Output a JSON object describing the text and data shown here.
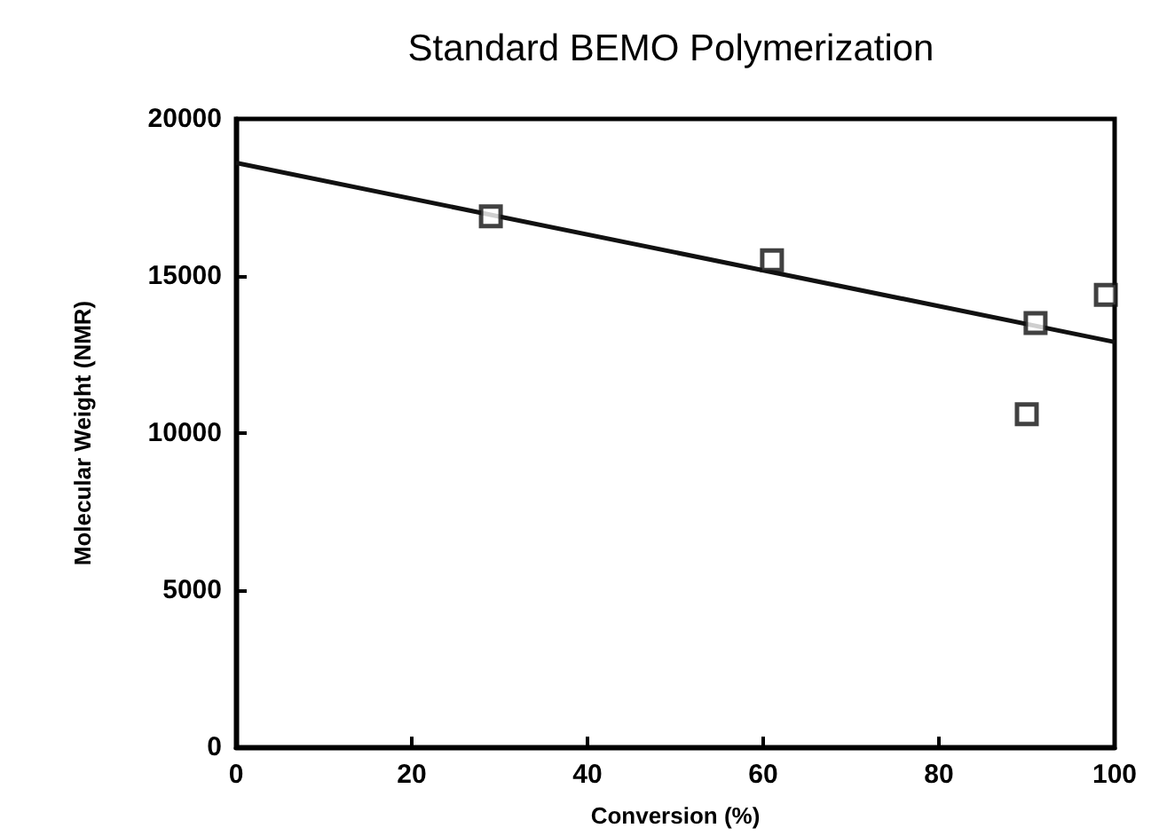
{
  "chart_data": {
    "type": "scatter",
    "title": "Standard BEMO Polymerization",
    "xlabel": "Conversion (%)",
    "ylabel": "Molecular Weight (NMR)",
    "xlim": [
      0,
      100
    ],
    "xticks": [
      0,
      20,
      40,
      60,
      80,
      100
    ],
    "ylim": [
      0,
      20000
    ],
    "yticks": [
      0,
      5000,
      10000,
      15000,
      20000
    ],
    "grid": false,
    "marker": "square",
    "series": [
      {
        "color": "#111111",
        "x": [
          29,
          61,
          90,
          91,
          99
        ],
        "values": [
          16900,
          15500,
          10600,
          13500,
          14400
        ]
      },
      {
        "type": "line",
        "color": "#111111",
        "marker": "none",
        "line_style": "solid",
        "x": [
          0,
          100
        ],
        "values": [
          18600,
          12900
        ]
      }
    ]
  }
}
